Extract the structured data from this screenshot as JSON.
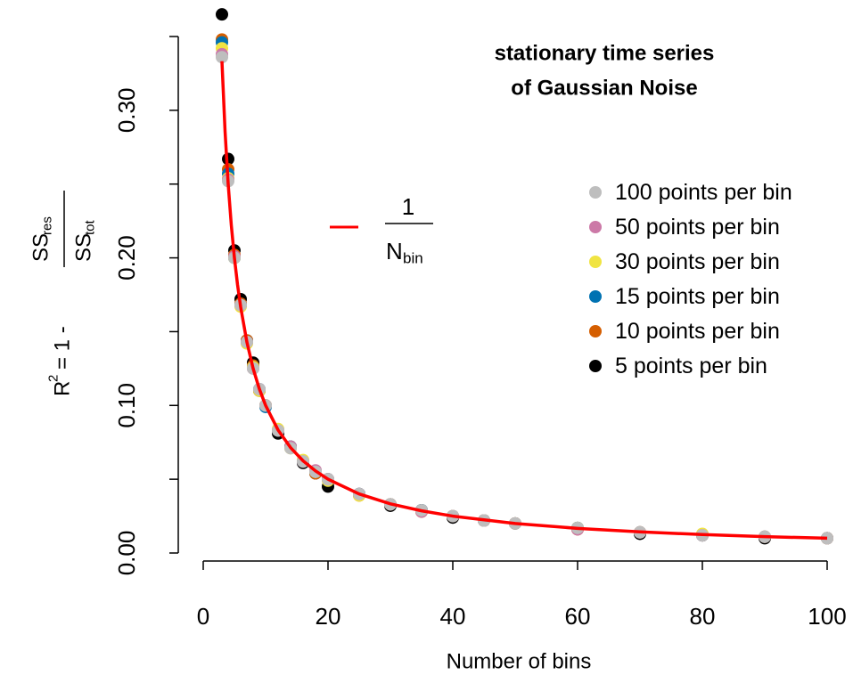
{
  "chart_data": {
    "type": "scatter",
    "title": [
      "stationary time series",
      "of Gaussian Noise"
    ],
    "x_label": "Number of bins",
    "y_label": {
      "r": "R",
      "sup": "2",
      "eq": "= 1 -",
      "num": "SS",
      "num_sub": "res",
      "den": "SS",
      "den_sub": "tot"
    },
    "xlim": [
      0,
      100
    ],
    "ylim": [
      0,
      0.35
    ],
    "xticks": [
      0,
      20,
      40,
      60,
      80,
      100
    ],
    "yticks": [
      {
        "value": 0,
        "label": "0.00"
      },
      {
        "value": 0.1,
        "label": "0.10"
      },
      {
        "value": 0.2,
        "label": "0.20"
      },
      {
        "value": 0.3,
        "label": "0.30"
      }
    ],
    "yminorticks": [
      0.05,
      0.15,
      0.25,
      0.35
    ],
    "x": [
      3,
      4,
      5,
      6,
      7,
      8,
      9,
      10,
      12,
      14,
      16,
      18,
      20,
      25,
      30,
      35,
      40,
      45,
      50,
      60,
      70,
      80,
      90,
      100
    ],
    "series": [
      {
        "name": "100 points per bin",
        "color": "#bebebe",
        "values": [
          0.336,
          0.252,
          0.2,
          0.168,
          0.143,
          0.125,
          0.111,
          0.1,
          0.083,
          0.071,
          0.062,
          0.055,
          0.05,
          0.04,
          0.033,
          0.029,
          0.025,
          0.022,
          0.02,
          0.017,
          0.014,
          0.012,
          0.011,
          0.01
        ]
      },
      {
        "name": "50 points per bin",
        "color": "#cc79a7",
        "values": [
          0.338,
          0.253,
          0.201,
          0.168,
          0.143,
          0.125,
          0.111,
          0.1,
          0.083,
          0.072,
          0.062,
          0.056,
          0.05,
          0.04,
          0.033,
          0.028,
          0.025,
          0.022,
          0.02,
          0.016,
          0.014,
          0.012,
          0.011,
          0.01
        ]
      },
      {
        "name": "30 points per bin",
        "color": "#f0e442",
        "values": [
          0.342,
          0.254,
          0.2,
          0.167,
          0.142,
          0.126,
          0.11,
          0.1,
          0.084,
          0.071,
          0.063,
          0.055,
          0.049,
          0.039,
          0.033,
          0.028,
          0.025,
          0.022,
          0.02,
          0.017,
          0.014,
          0.013,
          0.011,
          0.01
        ]
      },
      {
        "name": "15 points per bin",
        "color": "#0072b2",
        "values": [
          0.346,
          0.257,
          0.2,
          0.168,
          0.143,
          0.126,
          0.111,
          0.099,
          0.083,
          0.072,
          0.062,
          0.055,
          0.05,
          0.04,
          0.033,
          0.029,
          0.025,
          0.022,
          0.02,
          0.017,
          0.014,
          0.012,
          0.011,
          0.01
        ]
      },
      {
        "name": "10 points per bin",
        "color": "#d55e00",
        "values": [
          0.348,
          0.26,
          0.202,
          0.169,
          0.144,
          0.127,
          0.11,
          0.1,
          0.083,
          0.072,
          0.062,
          0.054,
          0.05,
          0.039,
          0.033,
          0.028,
          0.025,
          0.022,
          0.02,
          0.016,
          0.014,
          0.012,
          0.011,
          0.01
        ]
      },
      {
        "name": "5 points per bin",
        "color": "#000000",
        "values": [
          0.365,
          0.267,
          0.205,
          0.172,
          0.144,
          0.129,
          0.11,
          0.1,
          0.081,
          0.072,
          0.061,
          0.054,
          0.045,
          0.04,
          0.032,
          0.029,
          0.024,
          0.022,
          0.02,
          0.017,
          0.013,
          0.012,
          0.01,
          0.01
        ]
      }
    ],
    "curve": {
      "type": "line",
      "color": "#ff0000",
      "label": {
        "num": "1",
        "den": "N",
        "den_sub": "bin"
      },
      "x": [
        3,
        3.5,
        4,
        4.5,
        5,
        5.5,
        6,
        7,
        8,
        9,
        10,
        12,
        14,
        16,
        18,
        20,
        25,
        30,
        35,
        40,
        50,
        60,
        70,
        80,
        90,
        100
      ],
      "values": [
        0.3333,
        0.2857,
        0.25,
        0.2222,
        0.2,
        0.1818,
        0.1667,
        0.1429,
        0.125,
        0.1111,
        0.1,
        0.0833,
        0.0714,
        0.0625,
        0.0556,
        0.05,
        0.04,
        0.0333,
        0.0286,
        0.025,
        0.02,
        0.0167,
        0.0143,
        0.0125,
        0.0111,
        0.01
      ]
    }
  }
}
